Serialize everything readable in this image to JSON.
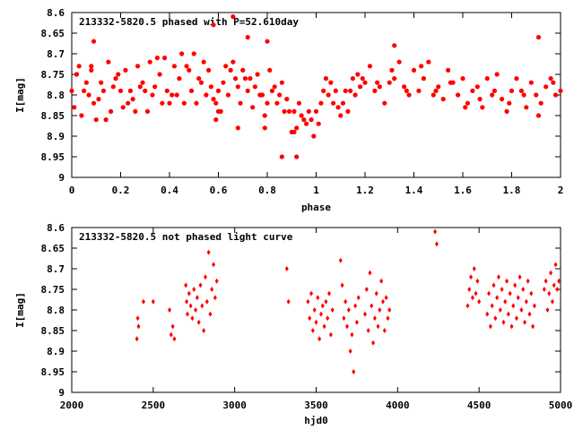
{
  "chart_data": [
    {
      "type": "scatter",
      "title": "213332-5820.5 phased with P=52.610day",
      "xlabel": "phase",
      "ylabel": "I[mag]",
      "xlim": [
        0,
        2
      ],
      "ylim": [
        8.6,
        9
      ],
      "y_inverted": true,
      "xticks": [
        "0",
        "0.2",
        "0.4",
        "0.6",
        "0.8",
        "1",
        "1.2",
        "1.4",
        "1.6",
        "1.8",
        "2"
      ],
      "yticks": [
        "8.6",
        "8.65",
        "8.7",
        "8.75",
        "8.8",
        "8.85",
        "8.9",
        "8.95",
        "9"
      ],
      "marker": "filled-circle",
      "color": "#ff0000",
      "grid": false,
      "series": [
        {
          "x": [
            0.0,
            0.01,
            0.02,
            0.03,
            0.05,
            0.06,
            0.07,
            0.08,
            0.09,
            0.1,
            0.12,
            0.13,
            0.14,
            0.15,
            0.16,
            0.18,
            0.19,
            0.2,
            0.21,
            0.22,
            0.24,
            0.25,
            0.26,
            0.27,
            0.28,
            0.3,
            0.31,
            0.32,
            0.33,
            0.34,
            0.36,
            0.37,
            0.38,
            0.39,
            0.4,
            0.42,
            0.43,
            0.44,
            0.45,
            0.46,
            0.48,
            0.49,
            0.5,
            0.51,
            0.52,
            0.54,
            0.55,
            0.56,
            0.57,
            0.58,
            0.6,
            0.61,
            0.62,
            0.63,
            0.64,
            0.66,
            0.67,
            0.68,
            0.69,
            0.7,
            0.72,
            0.73,
            0.74,
            0.75,
            0.76,
            0.78,
            0.79,
            0.8,
            0.81,
            0.82,
            0.84,
            0.85,
            0.86,
            0.87,
            0.88,
            0.9,
            0.91,
            0.92,
            0.93,
            0.94,
            0.96,
            0.97,
            0.98,
            0.99,
            1.0,
            1.02,
            1.03,
            1.04,
            1.05,
            1.06,
            1.08,
            1.09,
            1.1,
            1.11,
            1.12,
            1.14,
            1.15,
            1.16,
            1.17,
            1.18,
            1.2,
            1.22,
            1.24,
            1.26,
            1.28,
            1.3,
            1.32,
            1.34,
            1.36,
            1.38,
            1.4,
            1.42,
            1.44,
            1.46,
            1.48,
            1.5,
            1.52,
            1.54,
            1.56,
            1.58,
            1.6,
            1.62,
            1.64,
            1.66,
            1.68,
            1.7,
            1.72,
            1.74,
            1.76,
            1.78,
            1.8,
            1.82,
            1.84,
            1.86,
            1.88,
            1.9,
            1.92,
            1.94,
            1.96,
            1.98,
            2.0,
            0.02,
            0.04,
            0.08,
            0.11,
            0.17,
            0.23,
            0.29,
            0.35,
            0.41,
            0.47,
            0.53,
            0.59,
            0.65,
            0.71,
            0.77,
            0.83,
            0.89,
            0.95,
            1.01,
            1.07,
            1.13,
            1.19,
            1.25,
            1.31,
            1.37,
            1.43,
            1.49,
            1.55,
            1.61,
            1.67,
            1.73,
            1.79,
            1.85,
            1.91,
            1.97,
            0.58,
            0.59,
            0.6,
            0.66,
            0.68,
            0.72,
            0.79,
            0.8,
            0.86,
            0.92,
            0.91,
            1.91,
            0.09,
            1.32
          ],
          "y": [
            8.79,
            8.83,
            8.75,
            8.73,
            8.79,
            8.77,
            8.8,
            8.74,
            8.82,
            8.86,
            8.77,
            8.79,
            8.86,
            8.72,
            8.84,
            8.76,
            8.75,
            8.79,
            8.83,
            8.74,
            8.79,
            8.81,
            8.84,
            8.73,
            8.78,
            8.79,
            8.84,
            8.72,
            8.8,
            8.78,
            8.75,
            8.82,
            8.71,
            8.79,
            8.82,
            8.73,
            8.8,
            8.76,
            8.7,
            8.82,
            8.74,
            8.79,
            8.7,
            8.82,
            8.76,
            8.72,
            8.8,
            8.74,
            8.78,
            8.81,
            8.79,
            8.84,
            8.77,
            8.73,
            8.8,
            8.72,
            8.76,
            8.78,
            8.82,
            8.74,
            8.79,
            8.76,
            8.83,
            8.78,
            8.75,
            8.8,
            8.85,
            8.82,
            8.74,
            8.79,
            8.82,
            8.8,
            8.77,
            8.84,
            8.81,
            8.89,
            8.84,
            8.88,
            8.82,
            8.85,
            8.87,
            8.84,
            8.86,
            8.9,
            8.84,
            8.82,
            8.79,
            8.76,
            8.8,
            8.77,
            8.79,
            8.83,
            8.85,
            8.82,
            8.79,
            8.79,
            8.76,
            8.8,
            8.75,
            8.78,
            8.77,
            8.73,
            8.79,
            8.78,
            8.82,
            8.77,
            8.76,
            8.72,
            8.78,
            8.8,
            8.74,
            8.79,
            8.76,
            8.72,
            8.8,
            8.78,
            8.81,
            8.74,
            8.77,
            8.8,
            8.76,
            8.82,
            8.79,
            8.78,
            8.83,
            8.76,
            8.8,
            8.75,
            8.81,
            8.84,
            8.79,
            8.76,
            8.79,
            8.83,
            8.77,
            8.8,
            8.82,
            8.78,
            8.76,
            8.8,
            8.79,
            8.75,
            8.85,
            8.73,
            8.81,
            8.78,
            8.82,
            8.77,
            8.71,
            8.8,
            8.73,
            8.77,
            8.82,
            8.74,
            8.76,
            8.8,
            8.78,
            8.84,
            8.86,
            8.87,
            8.82,
            8.84,
            8.76,
            8.77,
            8.74,
            8.79,
            8.73,
            8.79,
            8.77,
            8.83,
            8.81,
            8.79,
            8.82,
            8.8,
            8.85,
            8.77,
            8.63,
            8.86,
            8.84,
            8.61,
            8.88,
            8.66,
            8.88,
            8.67,
            8.95,
            8.95,
            8.89,
            8.66,
            8.67,
            8.68
          ]
        }
      ]
    },
    {
      "type": "scatter",
      "title": "213332-5820.5 not phased light curve",
      "xlabel": "hjd0",
      "ylabel": "I[mag]",
      "xlim": [
        2000,
        5000
      ],
      "ylim": [
        8.6,
        9
      ],
      "y_inverted": true,
      "xticks": [
        "2000",
        "2500",
        "3000",
        "3500",
        "4000",
        "4500",
        "5000"
      ],
      "yticks": [
        "8.6",
        "8.65",
        "8.7",
        "8.75",
        "8.8",
        "8.85",
        "8.9",
        "8.95",
        "9"
      ],
      "marker": "filled-diamond",
      "color": "#ff0000",
      "grid": false,
      "series": [
        {
          "x": [
            2400,
            2405,
            2410,
            2440,
            2500,
            2600,
            2610,
            2620,
            2630,
            2700,
            2705,
            2710,
            2720,
            2730,
            2740,
            2750,
            2760,
            2770,
            2780,
            2790,
            2800,
            2810,
            2820,
            2830,
            2840,
            2850,
            2860,
            2870,
            2880,
            2890,
            3320,
            3330,
            3450,
            3460,
            3470,
            3480,
            3490,
            3500,
            3510,
            3520,
            3530,
            3540,
            3550,
            3560,
            3570,
            3580,
            3590,
            3600,
            3650,
            3660,
            3670,
            3680,
            3690,
            3700,
            3710,
            3720,
            3730,
            3740,
            3750,
            3760,
            3800,
            3810,
            3820,
            3830,
            3840,
            3850,
            3860,
            3870,
            3880,
            3890,
            3900,
            3910,
            3920,
            3930,
            3940,
            3950,
            4230,
            4240,
            4430,
            4440,
            4450,
            4460,
            4470,
            4480,
            4490,
            4500,
            4550,
            4560,
            4570,
            4580,
            4590,
            4600,
            4610,
            4620,
            4630,
            4640,
            4650,
            4660,
            4670,
            4680,
            4690,
            4700,
            4710,
            4720,
            4730,
            4740,
            4750,
            4760,
            4770,
            4780,
            4790,
            4800,
            4810,
            4820,
            4830,
            4840,
            4900,
            4910,
            4920,
            4930,
            4940,
            4950,
            4960,
            4970,
            4980,
            4990
          ],
          "y": [
            8.87,
            8.82,
            8.84,
            8.78,
            8.78,
            8.8,
            8.86,
            8.84,
            8.87,
            8.74,
            8.78,
            8.81,
            8.76,
            8.79,
            8.82,
            8.75,
            8.8,
            8.77,
            8.83,
            8.74,
            8.79,
            8.85,
            8.72,
            8.78,
            8.66,
            8.81,
            8.75,
            8.69,
            8.77,
            8.73,
            8.7,
            8.78,
            8.78,
            8.82,
            8.76,
            8.85,
            8.8,
            8.83,
            8.77,
            8.87,
            8.81,
            8.79,
            8.84,
            8.78,
            8.82,
            8.76,
            8.86,
            8.8,
            8.68,
            8.74,
            8.82,
            8.78,
            8.84,
            8.8,
            8.9,
            8.86,
            8.95,
            8.79,
            8.83,
            8.77,
            8.81,
            8.75,
            8.85,
            8.71,
            8.79,
            8.88,
            8.82,
            8.76,
            8.84,
            8.8,
            8.73,
            8.78,
            8.85,
            8.77,
            8.82,
            8.8,
            8.61,
            8.64,
            8.79,
            8.75,
            8.72,
            8.77,
            8.7,
            8.76,
            8.73,
            8.78,
            8.81,
            8.76,
            8.84,
            8.79,
            8.74,
            8.82,
            8.77,
            8.72,
            8.8,
            8.75,
            8.83,
            8.78,
            8.73,
            8.81,
            8.76,
            8.84,
            8.79,
            8.74,
            8.82,
            8.77,
            8.72,
            8.8,
            8.75,
            8.83,
            8.78,
            8.73,
            8.81,
            8.76,
            8.84,
            8.79,
            8.75,
            8.73,
            8.8,
            8.76,
            8.71,
            8.78,
            8.74,
            8.69,
            8.75,
            8.73
          ]
        }
      ]
    }
  ]
}
